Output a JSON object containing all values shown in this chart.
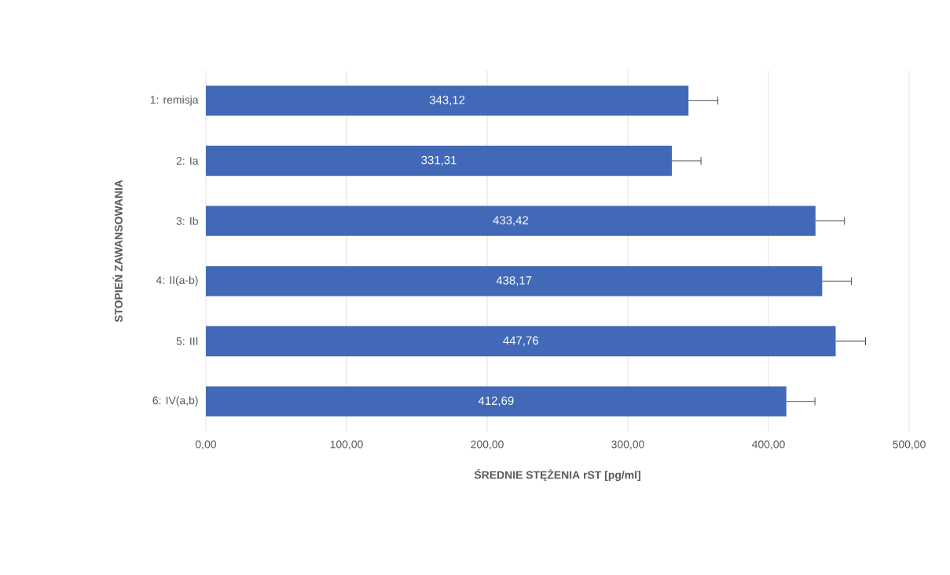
{
  "chart_data": {
    "type": "bar",
    "orientation": "horizontal",
    "xlabel": "ŚREDNIE STĘŻENIA rST [pg/ml]",
    "ylabel": "STOPIEŃ ZAWANSOWANIA",
    "categories": [
      "1: remisja",
      "2: Ia",
      "3: Ib",
      "4: II(a-b)",
      "5: III",
      "6: IV(a,b)"
    ],
    "values": [
      343.12,
      331.31,
      433.42,
      438.17,
      447.76,
      412.69
    ],
    "value_labels": [
      "343,12",
      "331,31",
      "433,42",
      "438,17",
      "447,76",
      "412,69"
    ],
    "errors": [
      [
        343.12,
        364
      ],
      [
        331.31,
        352
      ],
      [
        433.42,
        454
      ],
      [
        438.17,
        459
      ],
      [
        447.76,
        469
      ],
      [
        412.69,
        433
      ]
    ],
    "color": "#4169b8",
    "xlim": [
      0,
      500
    ],
    "xticks": [
      {
        "value": 0,
        "label": "0,00"
      },
      {
        "value": 100,
        "label": "100,00"
      },
      {
        "value": 200,
        "label": "200,00"
      },
      {
        "value": 300,
        "label": "300,00"
      },
      {
        "value": 400,
        "label": "400,00"
      },
      {
        "value": 500,
        "label": "500,00"
      }
    ],
    "grid": "x"
  }
}
